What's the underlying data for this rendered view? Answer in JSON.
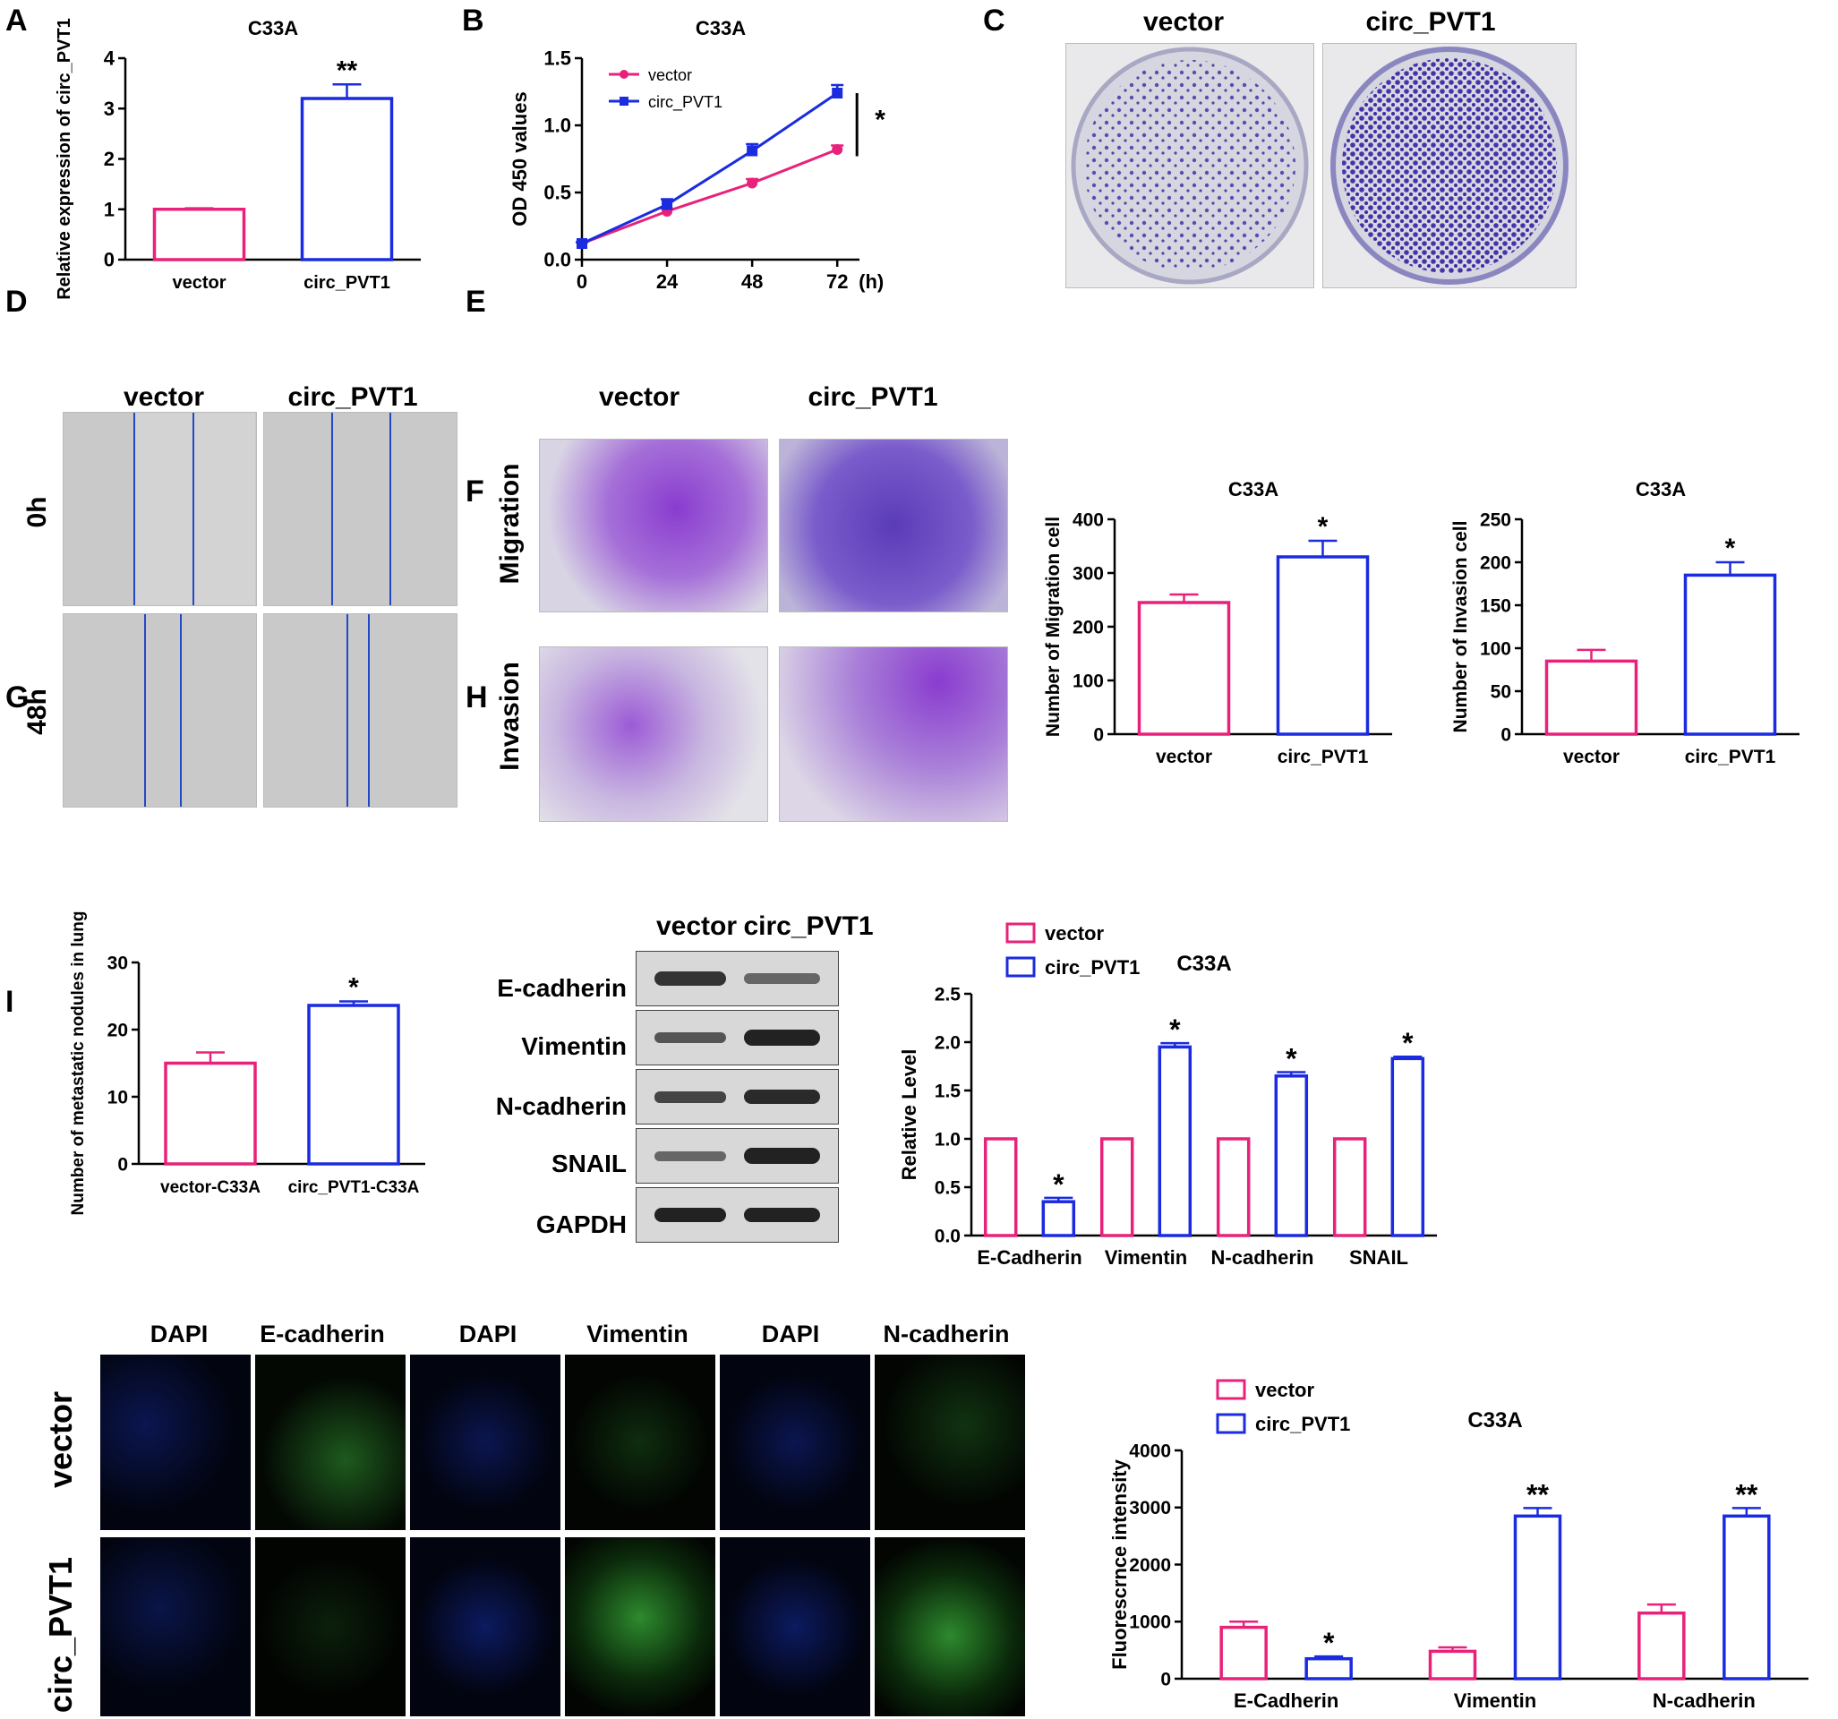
{
  "panel_letters": [
    "A",
    "B",
    "C",
    "D",
    "E",
    "F",
    "G",
    "H",
    "I"
  ],
  "panel_c": {
    "col_labels": [
      "vector",
      "circ_PVT1"
    ]
  },
  "panel_d": {
    "col_labels": [
      "vector",
      "circ_PVT1"
    ],
    "row_labels": [
      "0h",
      "48h"
    ]
  },
  "panel_ef": {
    "col_labels": [
      "vector",
      "circ_PVT1"
    ],
    "row_labels": [
      "Migration",
      "Invasion"
    ]
  },
  "panel_h_blot": {
    "col_labels": [
      "vector",
      "circ_PVT1"
    ],
    "row_labels": [
      "E-cadherin",
      "Vimentin",
      "N-cadherin",
      "SNAIL",
      "GAPDH"
    ]
  },
  "panel_i_images": {
    "col_labels": [
      "DAPI",
      "E-cadherin",
      "DAPI",
      "Vimentin",
      "DAPI",
      "N-cadherin"
    ],
    "row_labels": [
      "vector",
      "circ_PVT1"
    ]
  },
  "colors": {
    "vector": "#e8227a",
    "circ_PVT1": "#1a2be0"
  },
  "chart_data": [
    {
      "id": "A",
      "type": "bar",
      "title": "C33A",
      "ylabel": "Relative expression of circ_PVT1",
      "categories": [
        "vector",
        "circ_PVT1"
      ],
      "values": [
        1.0,
        3.2
      ],
      "errors": [
        0.02,
        0.28
      ],
      "ylim": [
        0,
        4
      ],
      "yticks": [
        0,
        1,
        2,
        3,
        4
      ],
      "annotations": [
        "",
        "**"
      ]
    },
    {
      "id": "B",
      "type": "line",
      "title": "C33A",
      "ylabel": "OD 450 values",
      "xlabel": "(h)",
      "x": [
        0,
        24,
        48,
        72
      ],
      "ylim": [
        0,
        1.5
      ],
      "yticks": [
        0,
        0.5,
        1.0,
        1.5
      ],
      "ytick_labels": [
        "0.0",
        "0.5",
        "1.0",
        "1.5"
      ],
      "series": [
        {
          "name": "vector",
          "values": [
            0.12,
            0.36,
            0.57,
            0.82
          ],
          "errors": [
            0.01,
            0.02,
            0.03,
            0.03
          ]
        },
        {
          "name": "circ_PVT1",
          "values": [
            0.12,
            0.41,
            0.81,
            1.24
          ],
          "errors": [
            0.01,
            0.04,
            0.05,
            0.06
          ]
        }
      ],
      "annotation": "*"
    },
    {
      "id": "E_migration",
      "type": "bar",
      "title": "C33A",
      "ylabel": "Number of Migration cell",
      "categories": [
        "vector",
        "circ_PVT1"
      ],
      "values": [
        245,
        330
      ],
      "errors": [
        15,
        30
      ],
      "ylim": [
        0,
        400
      ],
      "yticks": [
        0,
        100,
        200,
        300,
        400
      ],
      "annotations": [
        "",
        "*"
      ]
    },
    {
      "id": "F_invasion",
      "type": "bar",
      "title": "C33A",
      "ylabel": "Number of Invasion cell",
      "categories": [
        "vector",
        "circ_PVT1"
      ],
      "values": [
        85,
        185
      ],
      "errors": [
        13,
        15
      ],
      "ylim": [
        0,
        250
      ],
      "yticks": [
        0,
        50,
        100,
        150,
        200,
        250
      ],
      "annotations": [
        "",
        "*"
      ]
    },
    {
      "id": "G",
      "type": "bar",
      "title": "",
      "ylabel": "Number of metastatic nodules in lung",
      "categories": [
        "vector-C33A",
        "circ_PVT1-C33A"
      ],
      "values": [
        15,
        23.6
      ],
      "errors": [
        1.6,
        0.6
      ],
      "ylim": [
        0,
        30
      ],
      "yticks": [
        0,
        10,
        20,
        30
      ],
      "annotations": [
        "",
        "*"
      ]
    },
    {
      "id": "H",
      "type": "bar",
      "title": "C33A",
      "ylabel": "Relative Level",
      "categories": [
        "E-Cadherin",
        "Vimentin",
        "N-cadherin",
        "SNAIL"
      ],
      "series": [
        {
          "name": "vector",
          "values": [
            1.0,
            1.0,
            1.0,
            1.0
          ],
          "errors": [
            0,
            0,
            0,
            0
          ]
        },
        {
          "name": "circ_PVT1",
          "values": [
            0.35,
            1.95,
            1.65,
            1.83
          ],
          "errors": [
            0.04,
            0.04,
            0.04,
            0.02
          ]
        }
      ],
      "ylim": [
        0,
        2.5
      ],
      "yticks": [
        0,
        0.5,
        1.0,
        1.5,
        2.0,
        2.5
      ],
      "ytick_labels": [
        "0.0",
        "0.5",
        "1.0",
        "1.5",
        "2.0",
        "2.5"
      ],
      "annotations": [
        "*",
        "*",
        "*",
        "*"
      ],
      "legend": "top-left"
    },
    {
      "id": "I",
      "type": "bar",
      "title": "C33A",
      "ylabel": "Fluorescrnce intensity",
      "categories": [
        "E-Cadherin",
        "Vimentin",
        "N-cadherin"
      ],
      "series": [
        {
          "name": "vector",
          "values": [
            900,
            480,
            1150
          ],
          "errors": [
            100,
            70,
            150
          ]
        },
        {
          "name": "circ_PVT1",
          "values": [
            350,
            2850,
            2850
          ],
          "errors": [
            40,
            140,
            140
          ]
        }
      ],
      "ylim": [
        0,
        4000
      ],
      "yticks": [
        0,
        1000,
        2000,
        3000,
        4000
      ],
      "annotations": [
        "*",
        "**",
        "**"
      ],
      "legend": "top-left"
    }
  ]
}
